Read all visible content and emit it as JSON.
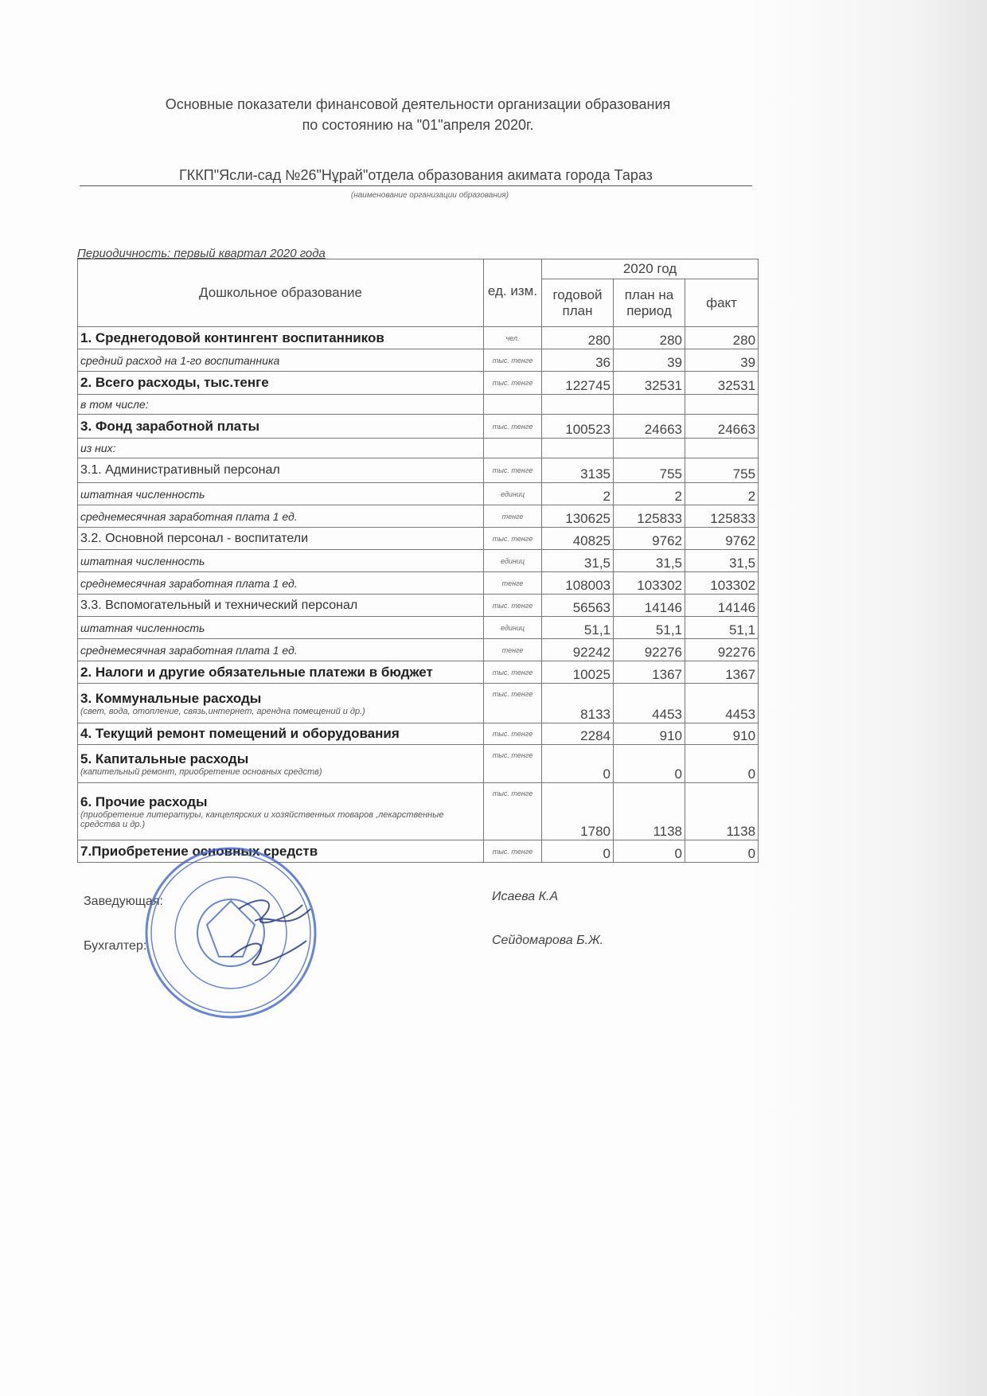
{
  "title_line1": "Основные показатели финансовой деятельности организации образования",
  "title_line2": "по состоянию на \"01\"апреля 2020г.",
  "organization": "ГККП\"Ясли-сад №26\"Нұрай\"отдела образования акимата города Тараз",
  "organization_note": "(наименование организации образования)",
  "periodicity": "Периодичность: первый  квартал 2020 года",
  "table": {
    "header": {
      "name": "Дошкольное образование",
      "unit": "ед. изм.",
      "year": "2020 год",
      "col1": "годовой план",
      "col2": "план на период",
      "col3": "факт"
    },
    "rows": [
      {
        "style": "b",
        "name": "1. Среднегодовой контингент воспитанников",
        "unit": "чел.",
        "v": [
          "280",
          "280",
          "280"
        ]
      },
      {
        "style": "i",
        "name": "средний расход на 1-го воспитанника",
        "unit": "тыс. тенге",
        "v": [
          "36",
          "39",
          "39"
        ]
      },
      {
        "style": "b",
        "name": "2. Всего расходы, тыс.тенге",
        "unit": "тыс. тенге",
        "v": [
          "122745",
          "32531",
          "32531"
        ]
      },
      {
        "style": "i",
        "name": "в том числе:",
        "unit": "",
        "v": [
          "",
          "",
          ""
        ]
      },
      {
        "style": "b",
        "name": "3. Фонд заработной платы",
        "unit": "тыс. тенге",
        "v": [
          "100523",
          "24663",
          "24663"
        ]
      },
      {
        "style": "i",
        "name": "из них:",
        "unit": "",
        "v": [
          "",
          "",
          ""
        ]
      },
      {
        "style": "n",
        "name": "3.1. Административный персонал",
        "unit": "тыс. тенге",
        "v": [
          "3135",
          "755",
          "755"
        ]
      },
      {
        "style": "i",
        "name": "штатная численность",
        "unit": "единиц",
        "v": [
          "2",
          "2",
          "2"
        ]
      },
      {
        "style": "i",
        "name": "среднемесячная заработная плата 1 ед.",
        "unit": "тенге",
        "v": [
          "130625",
          "125833",
          "125833"
        ]
      },
      {
        "style": "n",
        "name": "3.2. Основной персонал - воспитатели",
        "unit": "тыс. тенге",
        "v": [
          "40825",
          "9762",
          "9762"
        ]
      },
      {
        "style": "i",
        "name": "штатная численность",
        "unit": "единиц",
        "v": [
          "31,5",
          "31,5",
          "31,5"
        ]
      },
      {
        "style": "i",
        "name": "среднемесячная заработная плата 1 ед.",
        "unit": "тенге",
        "v": [
          "108003",
          "103302",
          "103302"
        ]
      },
      {
        "style": "n",
        "name": "3.3. Вспомогательный и технический персонал",
        "unit": "тыс. тенге",
        "v": [
          "56563",
          "14146",
          "14146"
        ]
      },
      {
        "style": "i",
        "name": "штатная численность",
        "unit": "единиц",
        "v": [
          "51,1",
          "51,1",
          "51,1"
        ]
      },
      {
        "style": "i",
        "name": "среднемесячная заработная плата 1 ед.",
        "unit": "тенге",
        "v": [
          "92242",
          "92276",
          "92276"
        ]
      },
      {
        "style": "b",
        "name": "2. Налоги и другие обязательные платежи в бюджет",
        "unit": "тыс. тенге",
        "v": [
          "10025",
          "1367",
          "1367"
        ]
      },
      {
        "style": "b",
        "name": "3. Коммунальные расходы",
        "sub": "(свет, вода, отопление, связь,интернет, арендна помещений и др.)",
        "unit": "тыс. тенге",
        "v": [
          "8133",
          "4453",
          "4453"
        ]
      },
      {
        "style": "b",
        "name": "4. Текущий ремонт помещений и оборудования",
        "unit": "тыс. тенге",
        "v": [
          "2284",
          "910",
          "910"
        ]
      },
      {
        "style": "b",
        "name": "5. Капитальные расходы",
        "sub": "(капительный ремонт, приобретение основных средств)",
        "unit": "тыс. тенге",
        "v": [
          "0",
          "0",
          "0"
        ]
      },
      {
        "style": "b",
        "name": "6. Прочие расходы",
        "sub": "(приобретение литературы, канцелярских и хозяйственных товаров ,лекарственные средства и др.)",
        "unit": "тыс. тенге",
        "v": [
          "1780",
          "1138",
          "1138"
        ]
      },
      {
        "style": "b",
        "name": "7.Приобретение основных средств",
        "unit": "тыс. тенге",
        "v": [
          "0",
          "0",
          "0"
        ]
      }
    ]
  },
  "signatures": {
    "head_label": "Заведующая:",
    "head_name": "Исаева К.А",
    "accountant_label": "Бухгалтер:",
    "accountant_name": "Сейдомарова Б.Ж."
  },
  "stamp_color": "#3a5fc4"
}
